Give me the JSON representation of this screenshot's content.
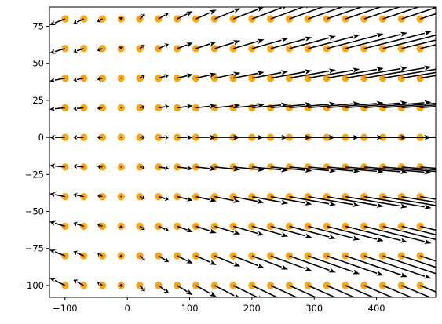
{
  "chart_data": {
    "type": "quiver",
    "title": "",
    "xlabel": "",
    "ylabel": "",
    "xlim": [
      -125,
      495
    ],
    "ylim": [
      -108,
      88
    ],
    "grid": false,
    "legend": null,
    "xticks": [
      -100,
      0,
      100,
      200,
      300,
      400
    ],
    "yticks": [
      75,
      50,
      25,
      0,
      -25,
      -50,
      -75,
      -100
    ],
    "xtick_labels": [
      "−100",
      "0",
      "100",
      "200",
      "300",
      "400"
    ],
    "ytick_labels": [
      "75",
      "50",
      "25",
      "0",
      "−25",
      "−50",
      "−75",
      "−100"
    ],
    "point_color": "#FFA500",
    "arrow_color": "#000000",
    "grid_x": [
      -100,
      -70,
      -40,
      -10,
      20,
      50,
      80,
      110,
      140,
      170,
      200,
      230,
      260,
      290,
      320,
      350,
      380,
      410,
      440,
      470
    ],
    "grid_y": [
      -100,
      -80,
      -60,
      -40,
      -20,
      0,
      20,
      40,
      60,
      80
    ],
    "vector_field": "arrow at (x, y) ≈ ((x + 10) * 0.22, y * 0.02 * |x + 10| / 50 + sign-dependent lean); near-zero length around x ≈ -10 to 20"
  }
}
